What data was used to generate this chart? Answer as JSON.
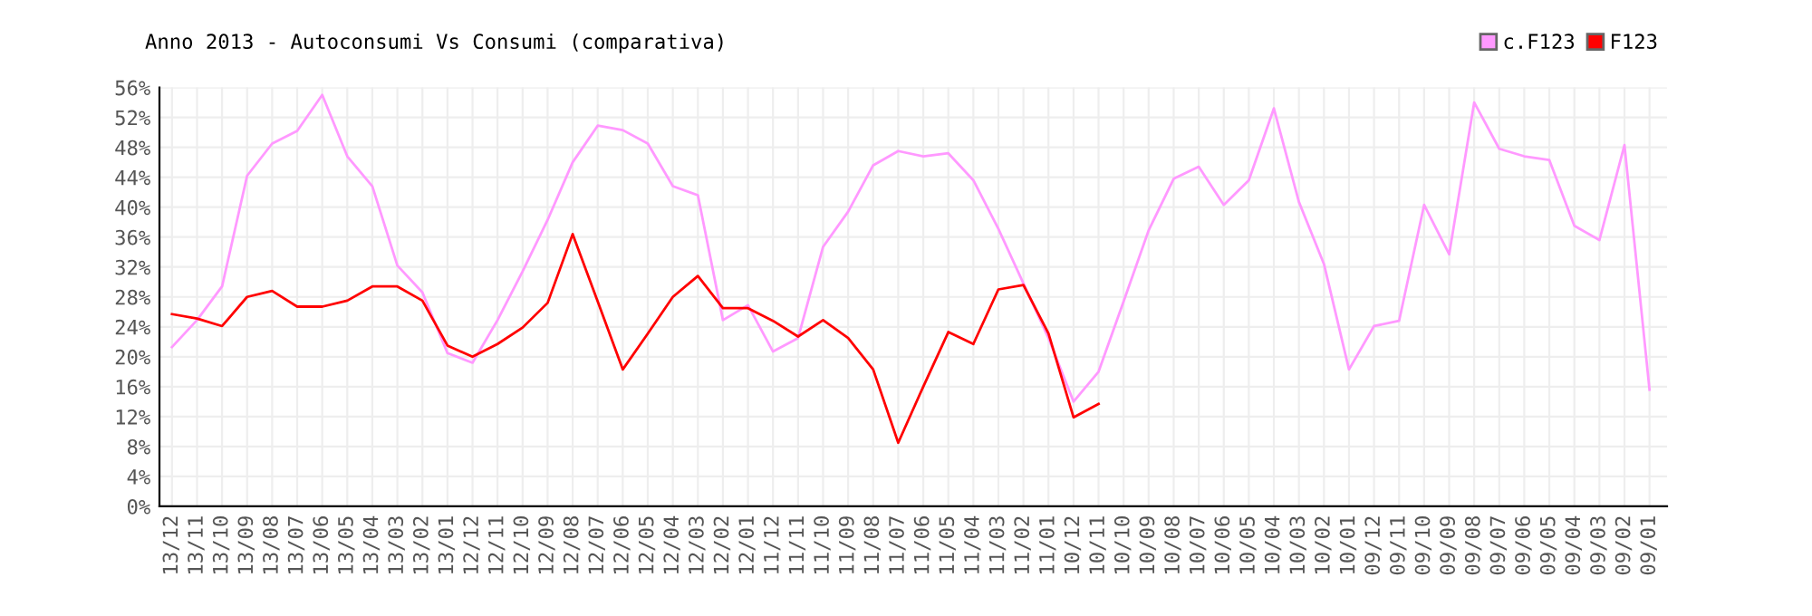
{
  "chart_data": {
    "type": "line",
    "title": "Anno 2013 - Autoconsumi Vs Consumi (comparativa)",
    "categories": [
      "13/12",
      "13/11",
      "13/10",
      "13/09",
      "13/08",
      "13/07",
      "13/06",
      "13/05",
      "13/04",
      "13/03",
      "13/02",
      "13/01",
      "12/12",
      "12/11",
      "12/10",
      "12/09",
      "12/08",
      "12/07",
      "12/06",
      "12/05",
      "12/04",
      "12/03",
      "12/02",
      "12/01",
      "11/12",
      "11/11",
      "11/10",
      "11/09",
      "11/08",
      "11/07",
      "11/06",
      "11/05",
      "11/04",
      "11/03",
      "11/02",
      "11/01",
      "10/12",
      "10/11",
      "10/10",
      "10/09",
      "10/08",
      "10/07",
      "10/06",
      "10/05",
      "10/04",
      "10/03",
      "10/02",
      "10/01",
      "09/12",
      "09/11",
      "09/10",
      "09/09",
      "09/08",
      "09/07",
      "09/06",
      "09/05",
      "09/04",
      "09/03",
      "09/02",
      "09/01"
    ],
    "series": [
      {
        "name": "c.F123",
        "color": "#ff99ff",
        "values": [
          21.3,
          24.9,
          29.4,
          44.2,
          48.5,
          50.2,
          55.0,
          46.8,
          42.8,
          32.2,
          28.6,
          20.5,
          19.2,
          24.9,
          31.4,
          38.3,
          46.0,
          50.9,
          50.3,
          48.5,
          42.8,
          41.6,
          24.9,
          26.9,
          20.7,
          22.5,
          34.7,
          39.4,
          45.6,
          47.5,
          46.8,
          47.2,
          43.6,
          37.1,
          29.8,
          22.5,
          14.0,
          18.0,
          27.4,
          36.9,
          43.8,
          45.4,
          40.3,
          43.6,
          53.2,
          40.7,
          32.4,
          18.3,
          24.1,
          24.8,
          40.3,
          33.7,
          54.0,
          47.8,
          46.8,
          46.3,
          37.5,
          35.6,
          48.3,
          15.6
        ]
      },
      {
        "name": "F123",
        "color": "#ff0000",
        "values": [
          25.7,
          25.1,
          24.1,
          28.0,
          28.8,
          26.7,
          26.7,
          27.5,
          29.4,
          29.4,
          27.5,
          21.5,
          20.0,
          21.7,
          23.9,
          27.2,
          36.4,
          27.4,
          18.3,
          23.1,
          28.0,
          30.8,
          26.5,
          26.5,
          24.8,
          22.7,
          24.9,
          22.5,
          18.3,
          8.5,
          16.0,
          23.3,
          21.7,
          29.0,
          29.6,
          23.1,
          11.9,
          13.7,
          null,
          null,
          null,
          null,
          null,
          null,
          null,
          null,
          null,
          null,
          null,
          null,
          null,
          null,
          null,
          null,
          null,
          null,
          null,
          null,
          null,
          null
        ]
      }
    ],
    "ylim": [
      0,
      56
    ],
    "yticks": [
      {
        "value": 0,
        "label": "0%"
      },
      {
        "value": 4,
        "label": "4%"
      },
      {
        "value": 8,
        "label": "8%"
      },
      {
        "value": 12,
        "label": "12%"
      },
      {
        "value": 16,
        "label": "16%"
      },
      {
        "value": 20,
        "label": "20%"
      },
      {
        "value": 24,
        "label": "24%"
      },
      {
        "value": 28,
        "label": "28%"
      },
      {
        "value": 32,
        "label": "32%"
      },
      {
        "value": 36,
        "label": "36%"
      },
      {
        "value": 40,
        "label": "40%"
      },
      {
        "value": 44,
        "label": "44%"
      },
      {
        "value": 48,
        "label": "48%"
      },
      {
        "value": 52,
        "label": "52%"
      },
      {
        "value": 56,
        "label": "56%"
      }
    ],
    "grid": true,
    "legend": "top right",
    "marker": "none",
    "line_style": "solid"
  }
}
